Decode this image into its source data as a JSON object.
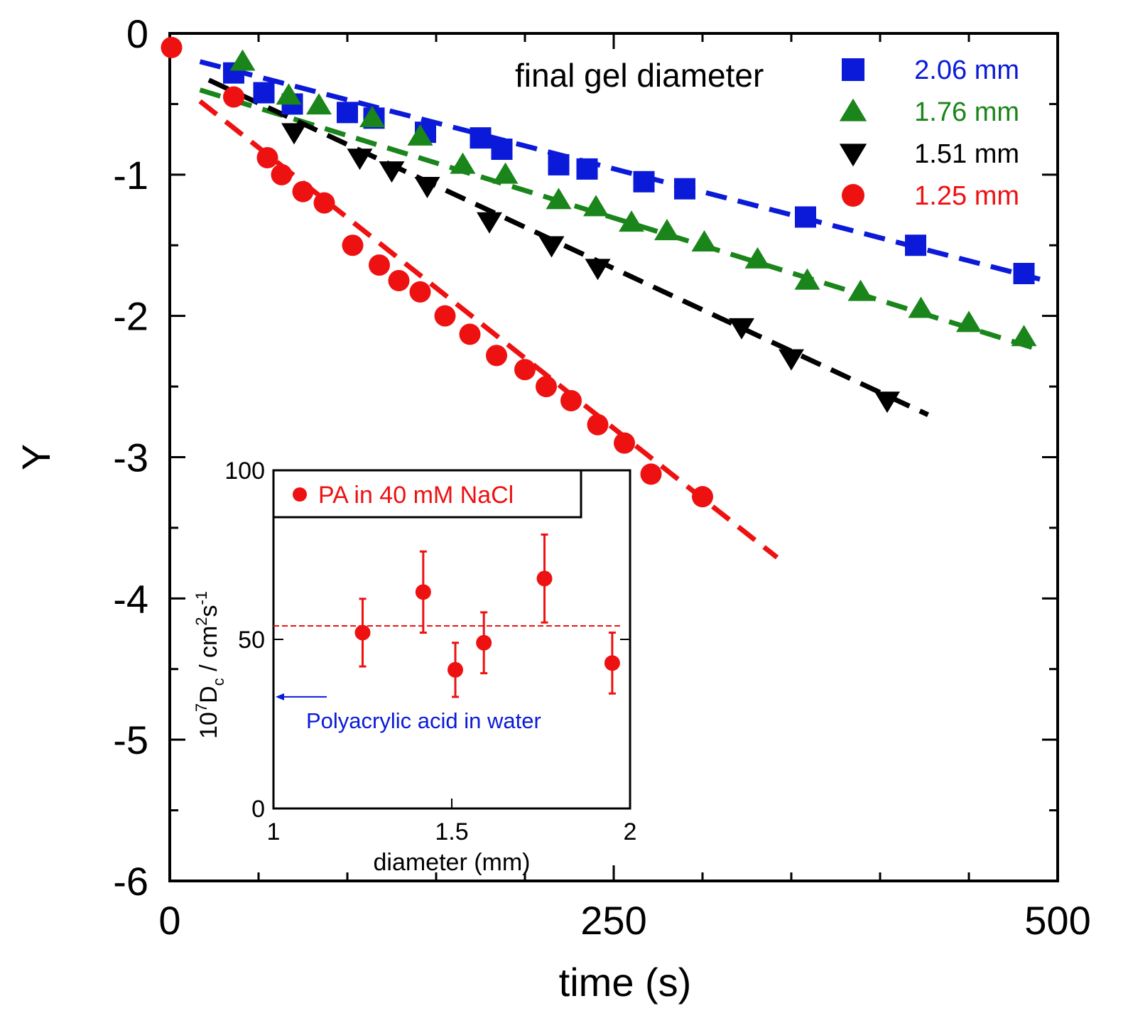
{
  "chart_data": [
    {
      "type": "scatter",
      "title": "",
      "xlabel": "time (s)",
      "ylabel": "Y",
      "xlim": [
        0,
        500
      ],
      "ylim": [
        -6,
        0
      ],
      "xticks": [
        0,
        250,
        500
      ],
      "yticks": [
        0,
        -1,
        -2,
        -3,
        -4,
        -5,
        -6
      ],
      "legend_title": "final gel diameter",
      "legend_position": "top-right",
      "series": [
        {
          "name": "2.06 mm",
          "color": "#0a1ad8",
          "marker": "square",
          "x": [
            36,
            53,
            69,
            100,
            115,
            144,
            175,
            187,
            219,
            235,
            267,
            290,
            358,
            420,
            481
          ],
          "y": [
            -0.28,
            -0.42,
            -0.5,
            -0.56,
            -0.6,
            -0.7,
            -0.74,
            -0.82,
            -0.93,
            -0.96,
            -1.05,
            -1.1,
            -1.3,
            -1.5,
            -1.7
          ],
          "fit": {
            "x": [
              17,
              490
            ],
            "y": [
              -0.2,
              -1.74
            ]
          }
        },
        {
          "name": "1.76 mm",
          "color": "#1a851a",
          "marker": "triangle-up",
          "x": [
            41,
            67,
            84,
            114,
            141,
            165,
            189,
            219,
            240,
            260,
            280,
            301,
            331,
            359,
            389,
            423,
            450,
            481
          ],
          "y": [
            -0.2,
            -0.44,
            -0.51,
            -0.6,
            -0.73,
            -0.93,
            -1.0,
            -1.18,
            -1.23,
            -1.34,
            -1.4,
            -1.48,
            -1.6,
            -1.75,
            -1.83,
            -1.95,
            -2.05,
            -2.15
          ],
          "fit": {
            "x": [
              17,
              490
            ],
            "y": [
              -0.4,
              -2.24
            ]
          }
        },
        {
          "name": "1.51 mm",
          "color": "#000000",
          "marker": "triangle-down",
          "x": [
            70,
            107,
            125,
            145,
            180,
            215,
            241,
            322,
            350,
            404
          ],
          "y": [
            -0.7,
            -0.88,
            -0.97,
            -1.08,
            -1.33,
            -1.5,
            -1.66,
            -2.08,
            -2.3,
            -2.6
          ],
          "fit": {
            "x": [
              22,
              427
            ],
            "y": [
              -0.33,
              -2.7
            ]
          }
        },
        {
          "name": "1.25 mm",
          "color": "#ee1111",
          "marker": "circle",
          "x": [
            1,
            36,
            55,
            63,
            75,
            87,
            103,
            118,
            129,
            141,
            155,
            169,
            184,
            200,
            212,
            226,
            241,
            256,
            271,
            300
          ],
          "y": [
            -0.1,
            -0.45,
            -0.88,
            -1.0,
            -1.12,
            -1.2,
            -1.5,
            -1.64,
            -1.75,
            -1.83,
            -2.0,
            -2.13,
            -2.28,
            -2.38,
            -2.5,
            -2.6,
            -2.77,
            -2.9,
            -3.12,
            -3.28
          ],
          "fit": {
            "x": [
              17,
              342
            ],
            "y": [
              -0.48,
              -3.71
            ]
          }
        }
      ]
    },
    {
      "type": "scatter",
      "title": "",
      "xlabel": "diameter (mm)",
      "ylabel_parts": [
        "10",
        "7",
        "D",
        "c",
        " / cm",
        "2",
        "s",
        "-1"
      ],
      "xlim": [
        1,
        2
      ],
      "ylim": [
        0,
        100
      ],
      "xticks": [
        "1",
        "1.5",
        "2"
      ],
      "yticks": [
        "0",
        "50",
        "100"
      ],
      "legend": "PA in 40 mM NaCl",
      "legend_position": "top-left",
      "series": [
        {
          "name": "PA in 40 mM NaCl",
          "color": "#ee1111",
          "marker": "circle",
          "x": [
            1.25,
            1.42,
            1.51,
            1.59,
            1.76,
            1.95
          ],
          "y": [
            52,
            64,
            41,
            49,
            68,
            43
          ],
          "err": [
            10,
            12,
            8,
            9,
            13,
            9
          ]
        }
      ],
      "reference_line": {
        "y": 54,
        "color": "#ee1111"
      },
      "annotation": {
        "text": "Polyacrylic acid in water",
        "value": 33,
        "color": "#0a1ad8"
      }
    }
  ]
}
